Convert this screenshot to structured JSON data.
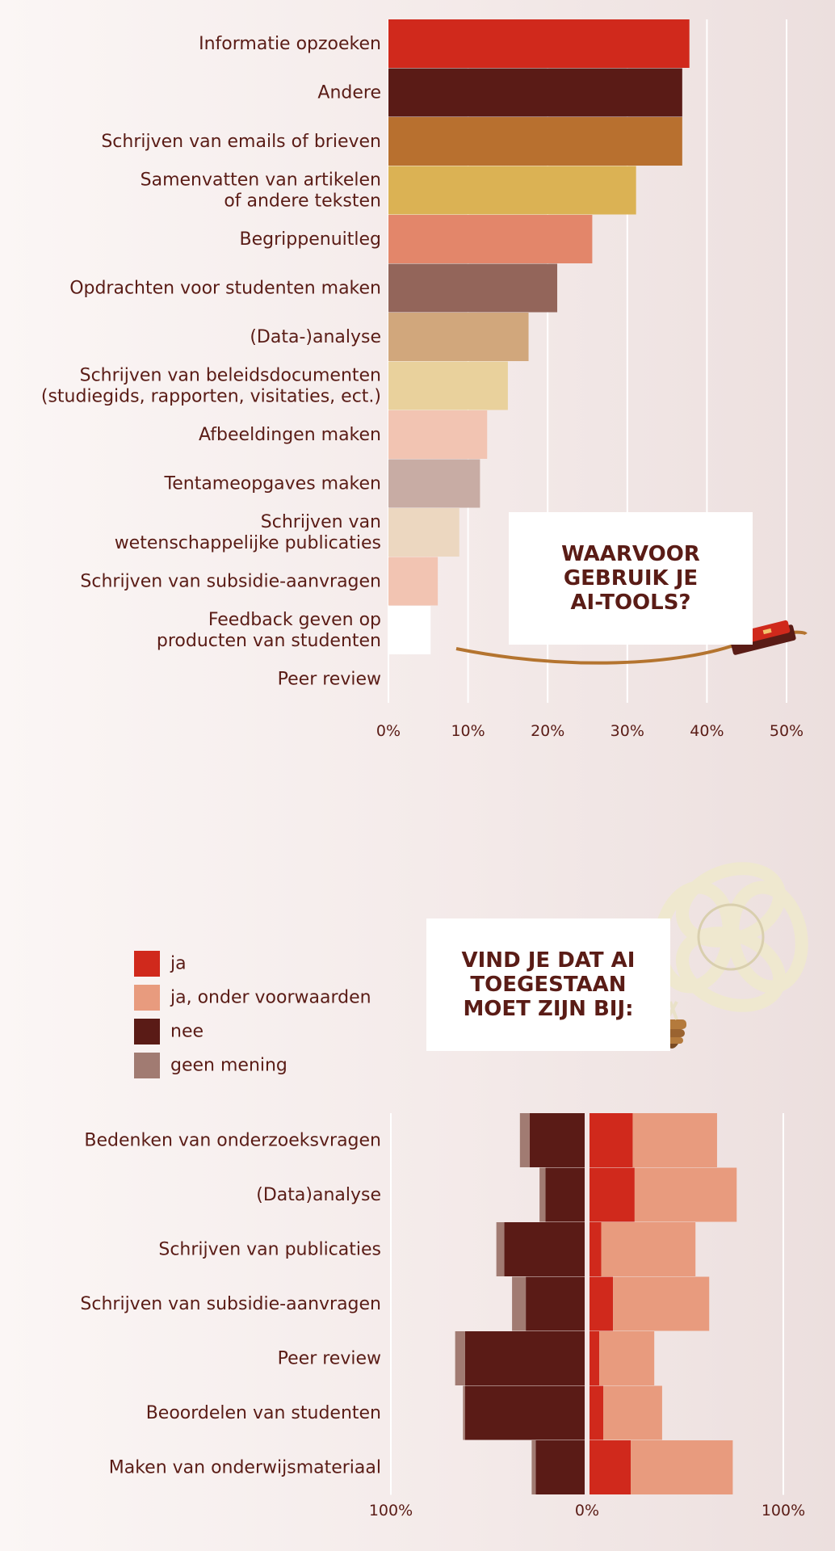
{
  "chart_data": [
    {
      "type": "bar",
      "orientation": "horizontal",
      "title": "WAARVOOR\nGEBRUIK JE\nAI-TOOLS?",
      "categories": [
        "Informatie opzoeken",
        "Andere",
        "Schrijven van emails of brieven",
        "Samenvatten van artikelen\nof andere teksten",
        "Begrippenuitleg",
        "Opdrachten voor studenten maken",
        "(Data-)analyse",
        "Schrijven van beleidsdocumenten\n(studiegids, rapporten, visitaties, ect.)",
        "Afbeeldingen maken",
        "Tentameopgaves maken",
        "Schrijven van\nwetenschappelijke publicaties",
        "Schrijven van subsidie-aanvragen",
        "Feedback geven op\nproducten van studenten",
        "Peer review"
      ],
      "values": [
        37.8,
        36.9,
        36.9,
        31.1,
        25.6,
        21.2,
        17.6,
        15.0,
        12.4,
        11.5,
        8.9,
        6.2,
        5.3,
        0
      ],
      "colors": [
        "#d0291c",
        "#5a1b16",
        "#b8702f",
        "#dbb254",
        "#e3866a",
        "#93655a",
        "#d1a77c",
        "#e9d19c",
        "#f2c4b2",
        "#c8aca4",
        "#ecd7c0",
        "#f2c4b2",
        "#ffffff",
        "#ffffff"
      ],
      "xlim": [
        0,
        50
      ],
      "xticks": [
        "0%",
        "10%",
        "20%",
        "30%",
        "40%",
        "50%"
      ],
      "xtick_values": [
        0,
        10,
        20,
        30,
        40,
        50
      ],
      "grid": true
    },
    {
      "type": "bar",
      "orientation": "horizontal",
      "stacked": true,
      "diverging": true,
      "title": "VIND JE DAT AI\nTOEGESTAAN\nMOET ZIJN BIJ:",
      "categories": [
        "Bedenken van onderzoeksvragen",
        "(Data)analyse",
        "Schrijven van publicaties",
        "Schrijven van subsidie-aanvragen",
        "Peer review",
        "Beoordelen van studenten",
        "Maken van onderwijsmateriaal"
      ],
      "series": [
        {
          "name": "ja",
          "color": "#d0291c",
          "values": [
            22,
            23,
            6,
            12,
            5,
            7,
            21
          ]
        },
        {
          "name": "ja, onder voorwaarden",
          "color": "#e89b7e",
          "values": [
            43,
            52,
            48,
            49,
            28,
            30,
            52
          ]
        },
        {
          "name": "nee",
          "color": "#5a1b16",
          "values": [
            28,
            20,
            41,
            30,
            61,
            61,
            25
          ]
        },
        {
          "name": "geen mening",
          "color": "#a17b72",
          "values": [
            5,
            3,
            4,
            7,
            5,
            1,
            2
          ]
        }
      ],
      "xticks": [
        "100%",
        "0%",
        "100%"
      ],
      "xlim": [
        -100,
        100
      ],
      "grid": true,
      "legend": "top-left"
    }
  ]
}
